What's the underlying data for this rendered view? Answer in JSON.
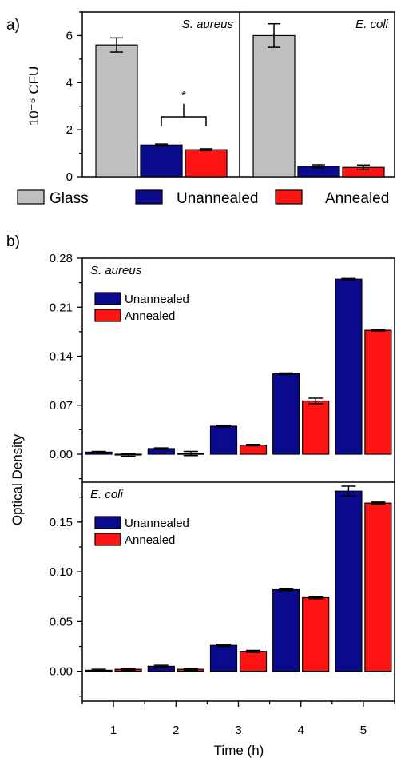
{
  "chart_data": [
    {
      "type": "bar",
      "panel_label": "a)",
      "ylabel": "10⁻⁶ CFU",
      "ylim": [
        0,
        7
      ],
      "yticks": [
        "0",
        "2",
        "4",
        "6"
      ],
      "legend": [
        "Glass",
        "Unannealed",
        "Annealed"
      ],
      "legend_position": "bottom",
      "subplots": [
        {
          "title": "S. aureus",
          "series": [
            {
              "name": "Glass",
              "color": "#c0c0c0",
              "value": 5.6,
              "error": 0.3
            },
            {
              "name": "Unannealed",
              "color": "#0a0a8c",
              "value": 1.35,
              "error": 0.04
            },
            {
              "name": "Annealed",
              "color": "#ff1414",
              "value": 1.15,
              "error": 0.04
            }
          ],
          "significance": "*"
        },
        {
          "title": "E. coli",
          "series": [
            {
              "name": "Glass",
              "color": "#c0c0c0",
              "value": 6.0,
              "error": 0.5
            },
            {
              "name": "Unannealed",
              "color": "#0a0a8c",
              "value": 0.45,
              "error": 0.06
            },
            {
              "name": "Annealed",
              "color": "#ff1414",
              "value": 0.4,
              "error": 0.1
            }
          ]
        }
      ]
    },
    {
      "type": "bar",
      "panel_label": "b)",
      "xlabel": "Time (h)",
      "ylabel": "Optical Density",
      "categories": [
        "1",
        "2",
        "3",
        "4",
        "5"
      ],
      "subplots": [
        {
          "title": "S. aureus",
          "ylim": [
            -0.04,
            0.28
          ],
          "yticks": [
            "0.00",
            "0.07",
            "0.14",
            "0.21",
            "0.28"
          ],
          "legend_position": "top-left",
          "series": [
            {
              "name": "Unannealed",
              "color": "#0a0a8c",
              "values": [
                0.003,
                0.008,
                0.04,
                0.115,
                0.25
              ],
              "errors": [
                0.001,
                0.001,
                0.001,
                0.001,
                0.001
              ]
            },
            {
              "name": "Annealed",
              "color": "#ff1414",
              "values": [
                -0.001,
                0.001,
                0.013,
                0.076,
                0.177
              ],
              "errors": [
                0.002,
                0.003,
                0.001,
                0.004,
                0.001
              ]
            }
          ]
        },
        {
          "title": "E. coli",
          "ylim": [
            -0.03,
            0.19
          ],
          "yticks": [
            "0.00",
            "0.05",
            "0.10",
            "0.15"
          ],
          "legend_position": "top-left",
          "series": [
            {
              "name": "Unannealed",
              "color": "#0a0a8c",
              "values": [
                0.001,
                0.005,
                0.026,
                0.082,
                0.181
              ],
              "errors": [
                0.001,
                0.001,
                0.001,
                0.001,
                0.005
              ]
            },
            {
              "name": "Annealed",
              "color": "#ff1414",
              "values": [
                0.002,
                0.002,
                0.02,
                0.074,
                0.169
              ],
              "errors": [
                0.001,
                0.001,
                0.001,
                0.001,
                0.001
              ]
            }
          ]
        }
      ]
    }
  ]
}
